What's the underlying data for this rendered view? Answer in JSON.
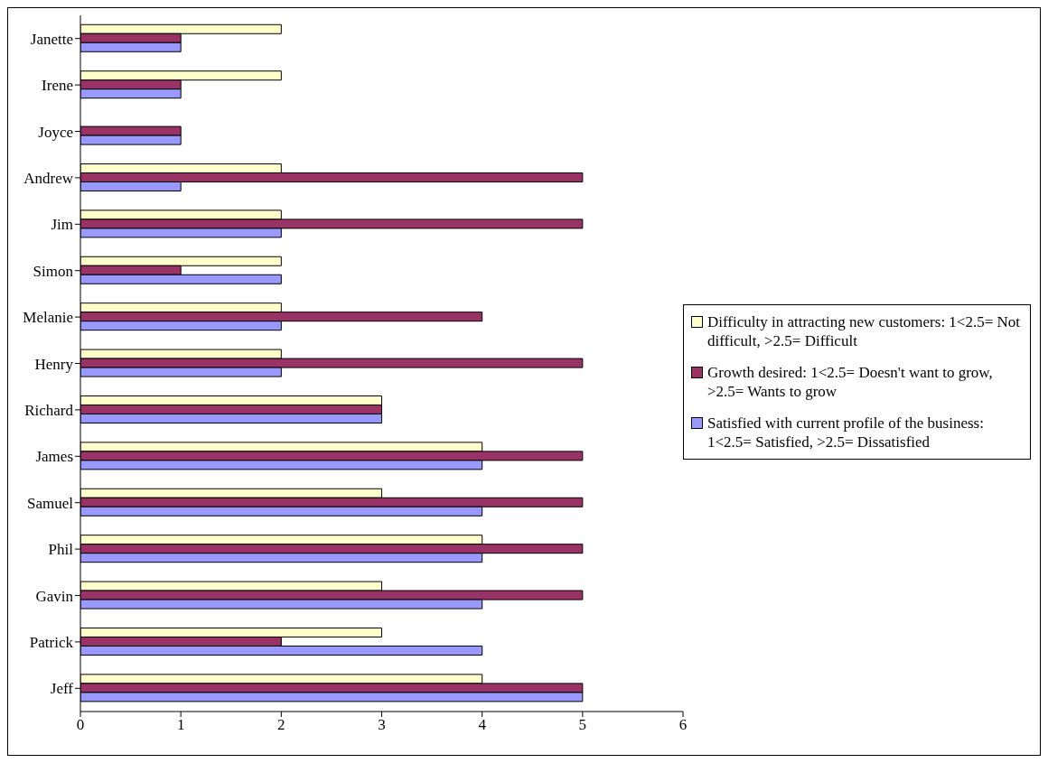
{
  "chart_data": {
    "type": "bar",
    "orientation": "horizontal",
    "categories": [
      "Janette",
      "Irene",
      "Joyce",
      "Andrew",
      "Jim",
      "Simon",
      "Melanie",
      "Henry",
      "Richard",
      "James",
      "Samuel",
      "Phil",
      "Gavin",
      "Patrick",
      "Jeff"
    ],
    "series": [
      {
        "name": "Difficulty in attracting new customers: 1<2.5= Not difficult, >2.5= Difficult",
        "color": "#ffffcc",
        "values": [
          2,
          2,
          null,
          2,
          2,
          2,
          2,
          2,
          3,
          4,
          3,
          4,
          3,
          3,
          4
        ]
      },
      {
        "name": "Growth desired: 1<2.5= Doesn't want to grow, >2.5= Wants to grow",
        "color": "#993366",
        "values": [
          1,
          1,
          1,
          5,
          5,
          1,
          4,
          5,
          3,
          5,
          5,
          5,
          5,
          2,
          5
        ]
      },
      {
        "name": "Satisfied with current profile of the business: 1<2.5= Satisfied, >2.5= Dissatisfied",
        "color": "#9999ff",
        "values": [
          1,
          1,
          1,
          1,
          2,
          2,
          2,
          2,
          3,
          4,
          4,
          4,
          4,
          4,
          5
        ]
      }
    ],
    "xlim": [
      0,
      6
    ],
    "xticks": [
      0,
      1,
      2,
      3,
      4,
      5,
      6
    ],
    "grid": false,
    "legend": "right"
  }
}
